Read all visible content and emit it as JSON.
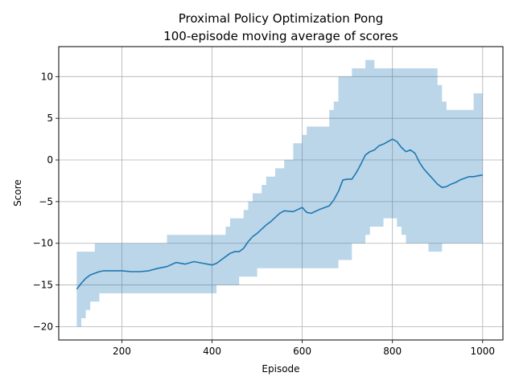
{
  "chart_data": {
    "type": "line",
    "title": "Proximal Policy Optimization Pong",
    "subtitle": "100-episode moving average of scores",
    "xlabel": "Episode",
    "ylabel": "Score",
    "xlim": [
      60,
      1045
    ],
    "ylim": [
      -21.6,
      13.6
    ],
    "xticks": [
      200,
      400,
      600,
      800,
      1000
    ],
    "yticks": [
      -20,
      -15,
      -10,
      -5,
      0,
      5,
      10
    ],
    "grid": true,
    "legend": "none",
    "colors": {
      "line": "#1f77b4",
      "band": "#1f77b4",
      "grid": "#b0b0b0"
    },
    "series": [
      {
        "x": [
          100,
          110,
          120,
          130,
          140,
          150,
          160,
          180,
          200,
          220,
          240,
          260,
          280,
          300,
          320,
          340,
          360,
          380,
          400,
          410,
          420,
          430,
          440,
          450,
          460,
          470,
          480,
          490,
          500,
          510,
          520,
          530,
          540,
          550,
          560,
          580,
          600,
          610,
          620,
          640,
          660,
          670,
          680,
          690,
          700,
          710,
          720,
          730,
          740,
          750,
          760,
          770,
          780,
          790,
          800,
          810,
          820,
          830,
          840,
          850,
          860,
          870,
          880,
          890,
          900,
          910,
          920,
          930,
          940,
          950,
          960,
          970,
          980,
          990,
          1000
        ],
        "mean": [
          -15.5,
          -14.8,
          -14.2,
          -13.8,
          -13.6,
          -13.4,
          -13.3,
          -13.3,
          -13.3,
          -13.4,
          -13.4,
          -13.3,
          -13.0,
          -12.8,
          -12.3,
          -12.5,
          -12.2,
          -12.4,
          -12.6,
          -12.4,
          -12.0,
          -11.6,
          -11.2,
          -11.0,
          -11.0,
          -10.6,
          -9.8,
          -9.2,
          -8.8,
          -8.3,
          -7.8,
          -7.4,
          -6.9,
          -6.4,
          -6.1,
          -6.2,
          -5.7,
          -6.3,
          -6.4,
          -5.9,
          -5.5,
          -4.8,
          -3.8,
          -2.4,
          -2.3,
          -2.3,
          -1.5,
          -0.5,
          0.6,
          1.0,
          1.2,
          1.7,
          1.9,
          2.2,
          2.5,
          2.2,
          1.5,
          1.0,
          1.2,
          0.8,
          -0.3,
          -1.1,
          -1.7,
          -2.3,
          -2.9,
          -3.3,
          -3.2,
          -2.9,
          -2.7,
          -2.4,
          -2.2,
          -2.0,
          -2.0,
          -1.9,
          -1.8
        ],
        "upper": [
          -11,
          -11,
          -11,
          -11,
          -10,
          -10,
          -10,
          -10,
          -10,
          -10,
          -10,
          -10,
          -10,
          -9,
          -9,
          -9,
          -9,
          -9,
          -9,
          -9,
          -9,
          -8,
          -7,
          -7,
          -7,
          -6,
          -5,
          -4,
          -4,
          -3,
          -2,
          -2,
          -1,
          -1,
          0,
          2,
          3,
          4,
          4,
          4,
          6,
          7,
          10,
          10,
          10,
          11,
          11,
          11,
          12,
          12,
          11,
          11,
          11,
          11,
          11,
          11,
          11,
          11,
          11,
          11,
          11,
          11,
          11,
          11,
          9,
          7,
          6,
          6,
          6,
          6,
          6,
          6,
          8,
          8,
          8
        ],
        "lower": [
          -20,
          -19,
          -18,
          -17,
          -17,
          -16,
          -16,
          -16,
          -16,
          -16,
          -16,
          -16,
          -16,
          -16,
          -16,
          -16,
          -16,
          -16,
          -16,
          -15,
          -15,
          -15,
          -15,
          -15,
          -14,
          -14,
          -14,
          -14,
          -13,
          -13,
          -13,
          -13,
          -13,
          -13,
          -13,
          -13,
          -13,
          -13,
          -13,
          -13,
          -13,
          -13,
          -12,
          -12,
          -12,
          -10,
          -10,
          -10,
          -9,
          -8,
          -8,
          -8,
          -7,
          -7,
          -7,
          -8,
          -9,
          -10,
          -10,
          -10,
          -10,
          -10,
          -11,
          -11,
          -11,
          -10,
          -10,
          -10,
          -10,
          -10,
          -10,
          -10,
          -10,
          -10,
          -10
        ]
      }
    ]
  }
}
